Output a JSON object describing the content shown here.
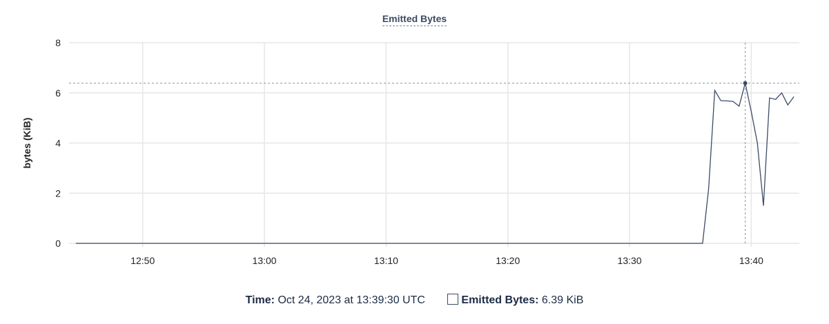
{
  "chart_data": {
    "type": "line",
    "title": "Emitted Bytes",
    "ylabel": "bytes (KiB)",
    "xlabel": "",
    "ylim": [
      0,
      8
    ],
    "yticks": [
      "0",
      "2",
      "4",
      "6",
      "8"
    ],
    "xticks": [
      "12:50",
      "13:00",
      "13:10",
      "13:20",
      "13:30",
      "13:40"
    ],
    "xlim": [
      "12:44:24",
      "13:44:24"
    ],
    "grid": true,
    "series": [
      {
        "name": "Emitted Bytes",
        "color": "#3b4a63",
        "points": [
          [
            "12:44:30",
            0
          ],
          [
            "13:36:00",
            0
          ],
          [
            "13:36:30",
            2.2
          ],
          [
            "13:37:00",
            6.1
          ],
          [
            "13:37:30",
            5.69
          ],
          [
            "13:38:00",
            5.68
          ],
          [
            "13:38:30",
            5.66
          ],
          [
            "13:39:00",
            5.47
          ],
          [
            "13:39:30",
            6.39
          ],
          [
            "13:40:00",
            5.25
          ],
          [
            "13:40:30",
            4.0
          ],
          [
            "13:41:00",
            1.5
          ],
          [
            "13:41:30",
            5.8
          ],
          [
            "13:42:00",
            5.74
          ],
          [
            "13:42:30",
            6.0
          ],
          [
            "13:43:00",
            5.52
          ],
          [
            "13:43:30",
            5.85
          ]
        ]
      }
    ],
    "crosshair": {
      "time": "13:39:30",
      "value": 6.39
    }
  },
  "legend": {
    "time_label": "Time:",
    "time_value": "Oct 24, 2023 at 13:39:30 UTC",
    "series_label": "Emitted Bytes:",
    "series_value": "6.39 KiB"
  }
}
